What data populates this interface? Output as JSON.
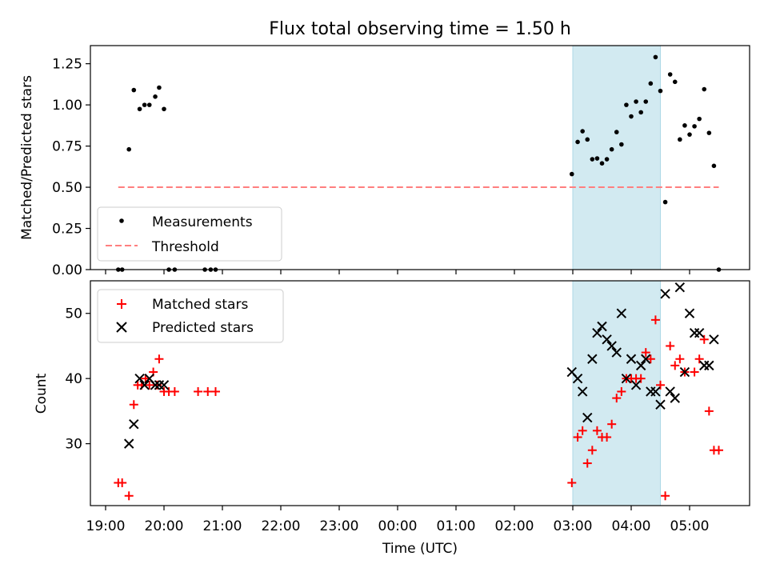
{
  "title": "Flux total observing time = 1.50 h",
  "colors": {
    "measurement": "#000000",
    "threshold": "#ff7f7f",
    "matched": "#ff0000",
    "predicted": "#000000",
    "highlight": "#add8e6"
  },
  "chart_data": [
    {
      "type": "scatter",
      "panel": "top",
      "ylabel": "Matched/Predicted stars",
      "ylim": [
        0,
        1.36
      ],
      "yticks": [
        "0.00",
        "0.25",
        "0.50",
        "0.75",
        "1.00",
        "1.25"
      ],
      "legend_location": "lower-left",
      "highlight_interval": [
        "03:00",
        "04:30"
      ],
      "series": [
        {
          "name": "Measurements",
          "marker": "dot",
          "points": [
            [
              "19:13",
              0.0
            ],
            [
              "19:17",
              0.0
            ],
            [
              "19:24",
              0.73
            ],
            [
              "19:29",
              1.09
            ],
            [
              "19:35",
              0.975
            ],
            [
              "19:40",
              1.0
            ],
            [
              "19:45",
              1.0
            ],
            [
              "19:51",
              1.05
            ],
            [
              "19:55",
              1.105
            ],
            [
              "20:00",
              0.975
            ],
            [
              "20:05",
              0.0
            ],
            [
              "20:11",
              0.0
            ],
            [
              "20:42",
              0.0
            ],
            [
              "20:48",
              0.0
            ],
            [
              "20:53",
              0.0
            ],
            [
              "02:59",
              0.58
            ],
            [
              "03:05",
              0.775
            ],
            [
              "03:10",
              0.84
            ],
            [
              "03:15",
              0.79
            ],
            [
              "03:20",
              0.67
            ],
            [
              "03:25",
              0.675
            ],
            [
              "03:30",
              0.645
            ],
            [
              "03:35",
              0.67
            ],
            [
              "03:40",
              0.73
            ],
            [
              "03:45",
              0.835
            ],
            [
              "03:50",
              0.76
            ],
            [
              "03:55",
              1.0
            ],
            [
              "04:00",
              0.93
            ],
            [
              "04:05",
              1.02
            ],
            [
              "04:10",
              0.955
            ],
            [
              "04:15",
              1.02
            ],
            [
              "04:20",
              1.13
            ],
            [
              "04:25",
              1.29
            ],
            [
              "04:30",
              1.085
            ],
            [
              "04:35",
              0.41
            ],
            [
              "04:40",
              1.185
            ],
            [
              "04:45",
              1.14
            ],
            [
              "04:50",
              0.79
            ],
            [
              "04:55",
              0.875
            ],
            [
              "05:00",
              0.82
            ],
            [
              "05:05",
              0.87
            ],
            [
              "05:10",
              0.915
            ],
            [
              "05:15",
              1.095
            ],
            [
              "05:20",
              0.83
            ],
            [
              "05:25",
              0.63
            ],
            [
              "05:30",
              0.0
            ]
          ]
        },
        {
          "name": "Threshold",
          "marker": "dashed-line",
          "points": [
            [
              "19:13",
              0.5
            ],
            [
              "05:30",
              0.5
            ]
          ]
        }
      ]
    },
    {
      "type": "scatter",
      "panel": "bottom",
      "ylabel": "Count",
      "xlabel": "Time (UTC)",
      "ylim": [
        20.5,
        55
      ],
      "yticks": [
        "30",
        "40",
        "50"
      ],
      "xticks": [
        "19:00",
        "20:00",
        "21:00",
        "22:00",
        "23:00",
        "00:00",
        "01:00",
        "02:00",
        "03:00",
        "04:00",
        "05:00"
      ],
      "legend_location": "upper-left",
      "highlight_interval": [
        "03:00",
        "04:30"
      ],
      "series": [
        {
          "name": "Matched stars",
          "marker": "plus",
          "points": [
            [
              "19:13",
              24
            ],
            [
              "19:17",
              24
            ],
            [
              "19:24",
              22
            ],
            [
              "19:29",
              36
            ],
            [
              "19:33",
              39
            ],
            [
              "19:37",
              39
            ],
            [
              "19:41",
              40
            ],
            [
              "19:45",
              39
            ],
            [
              "19:49",
              41
            ],
            [
              "19:53",
              39
            ],
            [
              "19:55",
              43
            ],
            [
              "20:00",
              38
            ],
            [
              "20:05",
              38
            ],
            [
              "20:11",
              38
            ],
            [
              "20:35",
              38
            ],
            [
              "20:45",
              38
            ],
            [
              "20:53",
              38
            ],
            [
              "02:59",
              24
            ],
            [
              "03:05",
              31
            ],
            [
              "03:10",
              32
            ],
            [
              "03:15",
              27
            ],
            [
              "03:20",
              29
            ],
            [
              "03:25",
              32
            ],
            [
              "03:30",
              31
            ],
            [
              "03:35",
              31
            ],
            [
              "03:40",
              33
            ],
            [
              "03:45",
              37
            ],
            [
              "03:50",
              38
            ],
            [
              "03:55",
              40
            ],
            [
              "04:00",
              40
            ],
            [
              "04:05",
              40
            ],
            [
              "04:10",
              40
            ],
            [
              "04:15",
              44
            ],
            [
              "04:20",
              43
            ],
            [
              "04:25",
              49
            ],
            [
              "04:30",
              39
            ],
            [
              "04:35",
              22
            ],
            [
              "04:40",
              45
            ],
            [
              "04:45",
              42
            ],
            [
              "04:50",
              43
            ],
            [
              "04:55",
              41
            ],
            [
              "05:05",
              41
            ],
            [
              "05:10",
              43
            ],
            [
              "05:15",
              46
            ],
            [
              "05:20",
              35
            ],
            [
              "05:25",
              29
            ],
            [
              "05:30",
              29
            ]
          ]
        },
        {
          "name": "Predicted stars",
          "marker": "x",
          "points": [
            [
              "19:24",
              30
            ],
            [
              "19:29",
              33
            ],
            [
              "19:35",
              40
            ],
            [
              "19:40",
              39
            ],
            [
              "19:45",
              40
            ],
            [
              "19:51",
              39
            ],
            [
              "19:55",
              39
            ],
            [
              "20:00",
              39
            ],
            [
              "02:59",
              41
            ],
            [
              "03:05",
              40
            ],
            [
              "03:10",
              38
            ],
            [
              "03:15",
              34
            ],
            [
              "03:20",
              43
            ],
            [
              "03:25",
              47
            ],
            [
              "03:30",
              48
            ],
            [
              "03:35",
              46
            ],
            [
              "03:40",
              45
            ],
            [
              "03:45",
              44
            ],
            [
              "03:50",
              50
            ],
            [
              "03:55",
              40
            ],
            [
              "04:00",
              43
            ],
            [
              "04:05",
              39
            ],
            [
              "04:10",
              42
            ],
            [
              "04:15",
              43
            ],
            [
              "04:20",
              38
            ],
            [
              "04:25",
              38
            ],
            [
              "04:30",
              36
            ],
            [
              "04:35",
              53
            ],
            [
              "04:40",
              38
            ],
            [
              "04:45",
              37
            ],
            [
              "04:50",
              54
            ],
            [
              "04:55",
              41
            ],
            [
              "05:00",
              50
            ],
            [
              "05:05",
              47
            ],
            [
              "05:10",
              47
            ],
            [
              "05:15",
              42
            ],
            [
              "05:20",
              42
            ],
            [
              "05:25",
              46
            ]
          ]
        }
      ]
    }
  ]
}
